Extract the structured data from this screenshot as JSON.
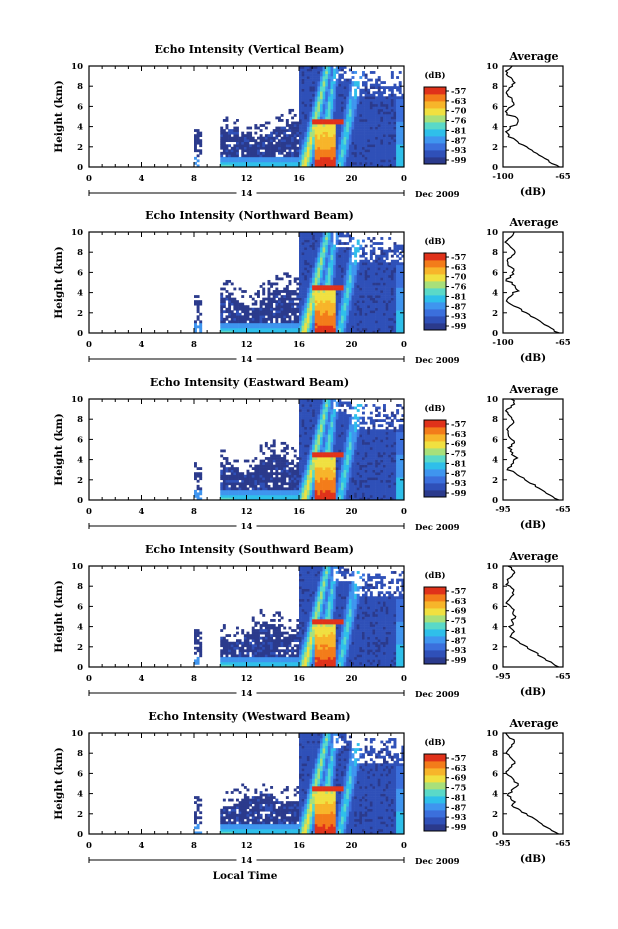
{
  "figure": {
    "xlabel": "Local Time",
    "date_label": "14",
    "month_label": "Dec 2009",
    "avg_title": "Average",
    "avg_xlabel": "(dB)",
    "colorbar_unit": "(dB)",
    "colormap": [
      "#2b3a8c",
      "#2f50b8",
      "#3b6fdc",
      "#3f95ef",
      "#2fbfea",
      "#5ad9c8",
      "#a8e07a",
      "#f0e040",
      "#f7b52a",
      "#f37c1a",
      "#e0321a"
    ],
    "background_color": "#ffffff",
    "no_data_color": "#ffffff"
  },
  "chart_data": [
    {
      "type": "heatmap",
      "title": "Echo Intensity (Vertical Beam)",
      "ylabel": "Height (km)",
      "xlabel": "Local Time",
      "xlim": [
        0,
        24
      ],
      "ylim": [
        0,
        10
      ],
      "x_ticks": [
        "0",
        "4",
        "8",
        "12",
        "16",
        "20",
        "0"
      ],
      "y_ticks": [
        "0",
        "2",
        "4",
        "6",
        "8",
        "10"
      ],
      "colorbar_ticks": [
        "-57",
        "-63",
        "-70",
        "-76",
        "-81",
        "-87",
        "-93",
        "-99"
      ],
      "average_profile": {
        "xlim": [
          -100,
          -65
        ],
        "x_ticks": [
          "-100",
          "-65"
        ],
        "y_ticks": [
          "0",
          "2",
          "4",
          "6",
          "8",
          "10"
        ]
      }
    },
    {
      "type": "heatmap",
      "title": "Echo Intensity (Northward Beam)",
      "ylabel": "Height (km)",
      "xlabel": "Local Time",
      "xlim": [
        0,
        24
      ],
      "ylim": [
        0,
        10
      ],
      "x_ticks": [
        "0",
        "4",
        "8",
        "12",
        "16",
        "20",
        "0"
      ],
      "y_ticks": [
        "0",
        "2",
        "4",
        "6",
        "8",
        "10"
      ],
      "colorbar_ticks": [
        "-57",
        "-63",
        "-70",
        "-76",
        "-81",
        "-87",
        "-93",
        "-99"
      ],
      "average_profile": {
        "xlim": [
          -100,
          -65
        ],
        "x_ticks": [
          "-100",
          "-65"
        ],
        "y_ticks": [
          "0",
          "2",
          "4",
          "6",
          "8",
          "10"
        ]
      }
    },
    {
      "type": "heatmap",
      "title": "Echo Intensity (Eastward Beam)",
      "ylabel": "Height (km)",
      "xlabel": "Local Time",
      "xlim": [
        0,
        24
      ],
      "ylim": [
        0,
        10
      ],
      "x_ticks": [
        "0",
        "4",
        "8",
        "12",
        "16",
        "20",
        "0"
      ],
      "y_ticks": [
        "0",
        "2",
        "4",
        "6",
        "8",
        "10"
      ],
      "colorbar_ticks": [
        "-57",
        "-63",
        "-69",
        "-75",
        "-81",
        "-87",
        "-93",
        "-99"
      ],
      "average_profile": {
        "xlim": [
          -95,
          -65
        ],
        "x_ticks": [
          "-95",
          "-65"
        ],
        "y_ticks": [
          "0",
          "2",
          "4",
          "6",
          "8",
          "10"
        ]
      }
    },
    {
      "type": "heatmap",
      "title": "Echo Intensity (Southward Beam)",
      "ylabel": "Height (km)",
      "xlabel": "Local Time",
      "xlim": [
        0,
        24
      ],
      "ylim": [
        0,
        10
      ],
      "x_ticks": [
        "0",
        "4",
        "8",
        "12",
        "16",
        "20",
        "0"
      ],
      "y_ticks": [
        "0",
        "2",
        "4",
        "6",
        "8",
        "10"
      ],
      "colorbar_ticks": [
        "-57",
        "-63",
        "-69",
        "-75",
        "-81",
        "-87",
        "-93",
        "-99"
      ],
      "average_profile": {
        "xlim": [
          -95,
          -65
        ],
        "x_ticks": [
          "-95",
          "-65"
        ],
        "y_ticks": [
          "0",
          "2",
          "4",
          "6",
          "8",
          "10"
        ]
      }
    },
    {
      "type": "heatmap",
      "title": "Echo Intensity (Westward Beam)",
      "ylabel": "Height (km)",
      "xlabel": "Local Time",
      "xlim": [
        0,
        24
      ],
      "ylim": [
        0,
        10
      ],
      "x_ticks": [
        "0",
        "4",
        "8",
        "12",
        "16",
        "20",
        "0"
      ],
      "y_ticks": [
        "0",
        "2",
        "4",
        "6",
        "8",
        "10"
      ],
      "colorbar_ticks": [
        "-57",
        "-63",
        "-69",
        "-75",
        "-81",
        "-87",
        "-93",
        "-99"
      ],
      "average_profile": {
        "xlim": [
          -95,
          -65
        ],
        "x_ticks": [
          "-95",
          "-65"
        ],
        "y_ticks": [
          "0",
          "2",
          "4",
          "6",
          "8",
          "10"
        ]
      }
    }
  ]
}
